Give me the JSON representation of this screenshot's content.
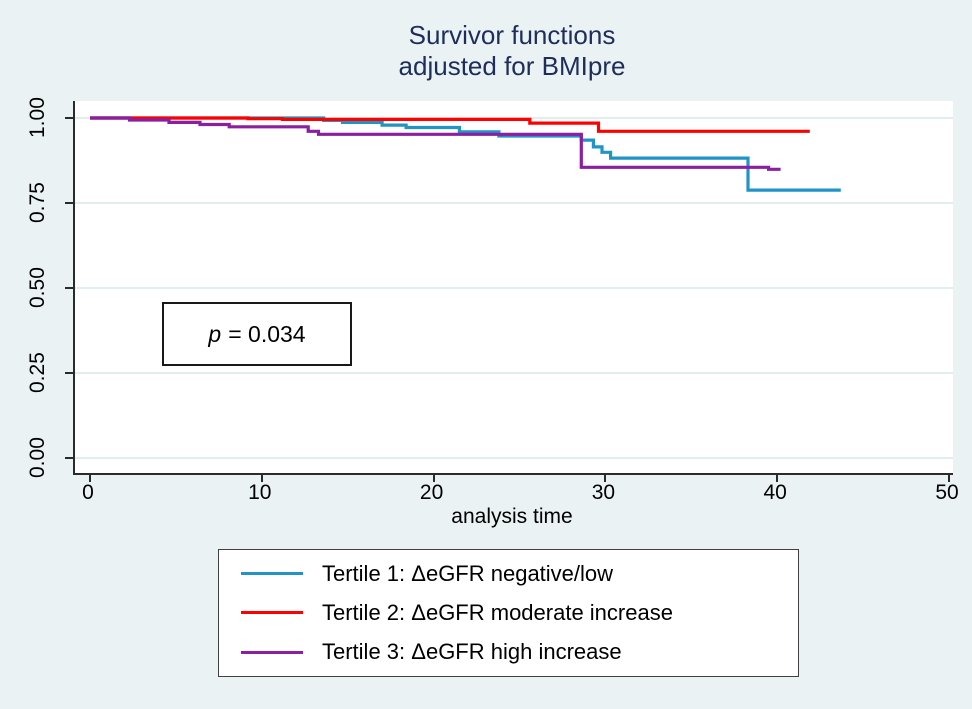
{
  "title": {
    "line1": "Survivor functions",
    "line2": "adjusted for BMIpre"
  },
  "annotation": {
    "text": "p = 0.034",
    "symbol": "p",
    "rest": "= 0.034"
  },
  "colors": {
    "background": "#EAF2F3",
    "plot_background": "#ffffff",
    "title_text": "#1E2D5A",
    "gridline": "#e2edef",
    "axis": "#2b2b2b",
    "tertile1_blue": "#2194C6",
    "tertile2_red": "#FF0000",
    "tertile3_purple": "#8B1EA1"
  },
  "legend": {
    "items": [
      {
        "label": "Tertile 1: ΔeGFR negative/low",
        "color": "#2194C6"
      },
      {
        "label": "Tertile 2: ΔeGFR moderate increase",
        "color": "#FF0000"
      },
      {
        "label": "Tertile 3: ΔeGFR high increase",
        "color": "#8B1EA1"
      }
    ]
  },
  "chart_data": {
    "type": "line",
    "step": true,
    "title": "Survivor functions adjusted for BMIpre",
    "xlabel": "analysis time",
    "ylabel": "",
    "xlim": [
      0,
      50
    ],
    "ylim": [
      0.0,
      1.0
    ],
    "x_ticks": [
      0,
      10,
      20,
      30,
      40,
      50
    ],
    "x_tick_labels": [
      "0",
      "10",
      "20",
      "30",
      "40",
      "50"
    ],
    "y_ticks": [
      0.0,
      0.25,
      0.5,
      0.75,
      1.0
    ],
    "y_tick_labels": [
      "0.00",
      "0.25",
      "0.50",
      "0.75",
      "1.00"
    ],
    "grid": true,
    "legend_position": "below",
    "series": [
      {
        "name": "Tertile 1: ΔeGFR negative/low",
        "color": "#2194C6",
        "steps": [
          [
            0,
            1.0
          ],
          [
            13.6,
            0.993
          ],
          [
            14.7,
            0.987
          ],
          [
            17.0,
            0.979
          ],
          [
            18.4,
            0.972
          ],
          [
            21.5,
            0.959
          ],
          [
            23.8,
            0.947
          ],
          [
            28.6,
            0.935
          ],
          [
            29.3,
            0.915
          ],
          [
            29.8,
            0.899
          ],
          [
            30.3,
            0.882
          ],
          [
            38.3,
            0.788
          ]
        ],
        "end": 43.7
      },
      {
        "name": "Tertile 2: ΔeGFR moderate increase",
        "color": "#FF0000",
        "steps": [
          [
            0,
            1.0
          ],
          [
            9.2,
            0.998
          ],
          [
            11.2,
            0.996
          ],
          [
            25.6,
            0.985
          ],
          [
            29.6,
            0.961
          ]
        ],
        "end": 41.9
      },
      {
        "name": "Tertile 3: ΔeGFR high increase",
        "color": "#8B1EA1",
        "steps": [
          [
            0,
            1.0
          ],
          [
            2.3,
            0.994
          ],
          [
            4.6,
            0.987
          ],
          [
            6.4,
            0.981
          ],
          [
            8.1,
            0.974
          ],
          [
            12.7,
            0.961
          ],
          [
            13.3,
            0.952
          ],
          [
            28.6,
            0.855
          ],
          [
            39.5,
            0.849
          ]
        ],
        "end": 40.2
      }
    ]
  }
}
